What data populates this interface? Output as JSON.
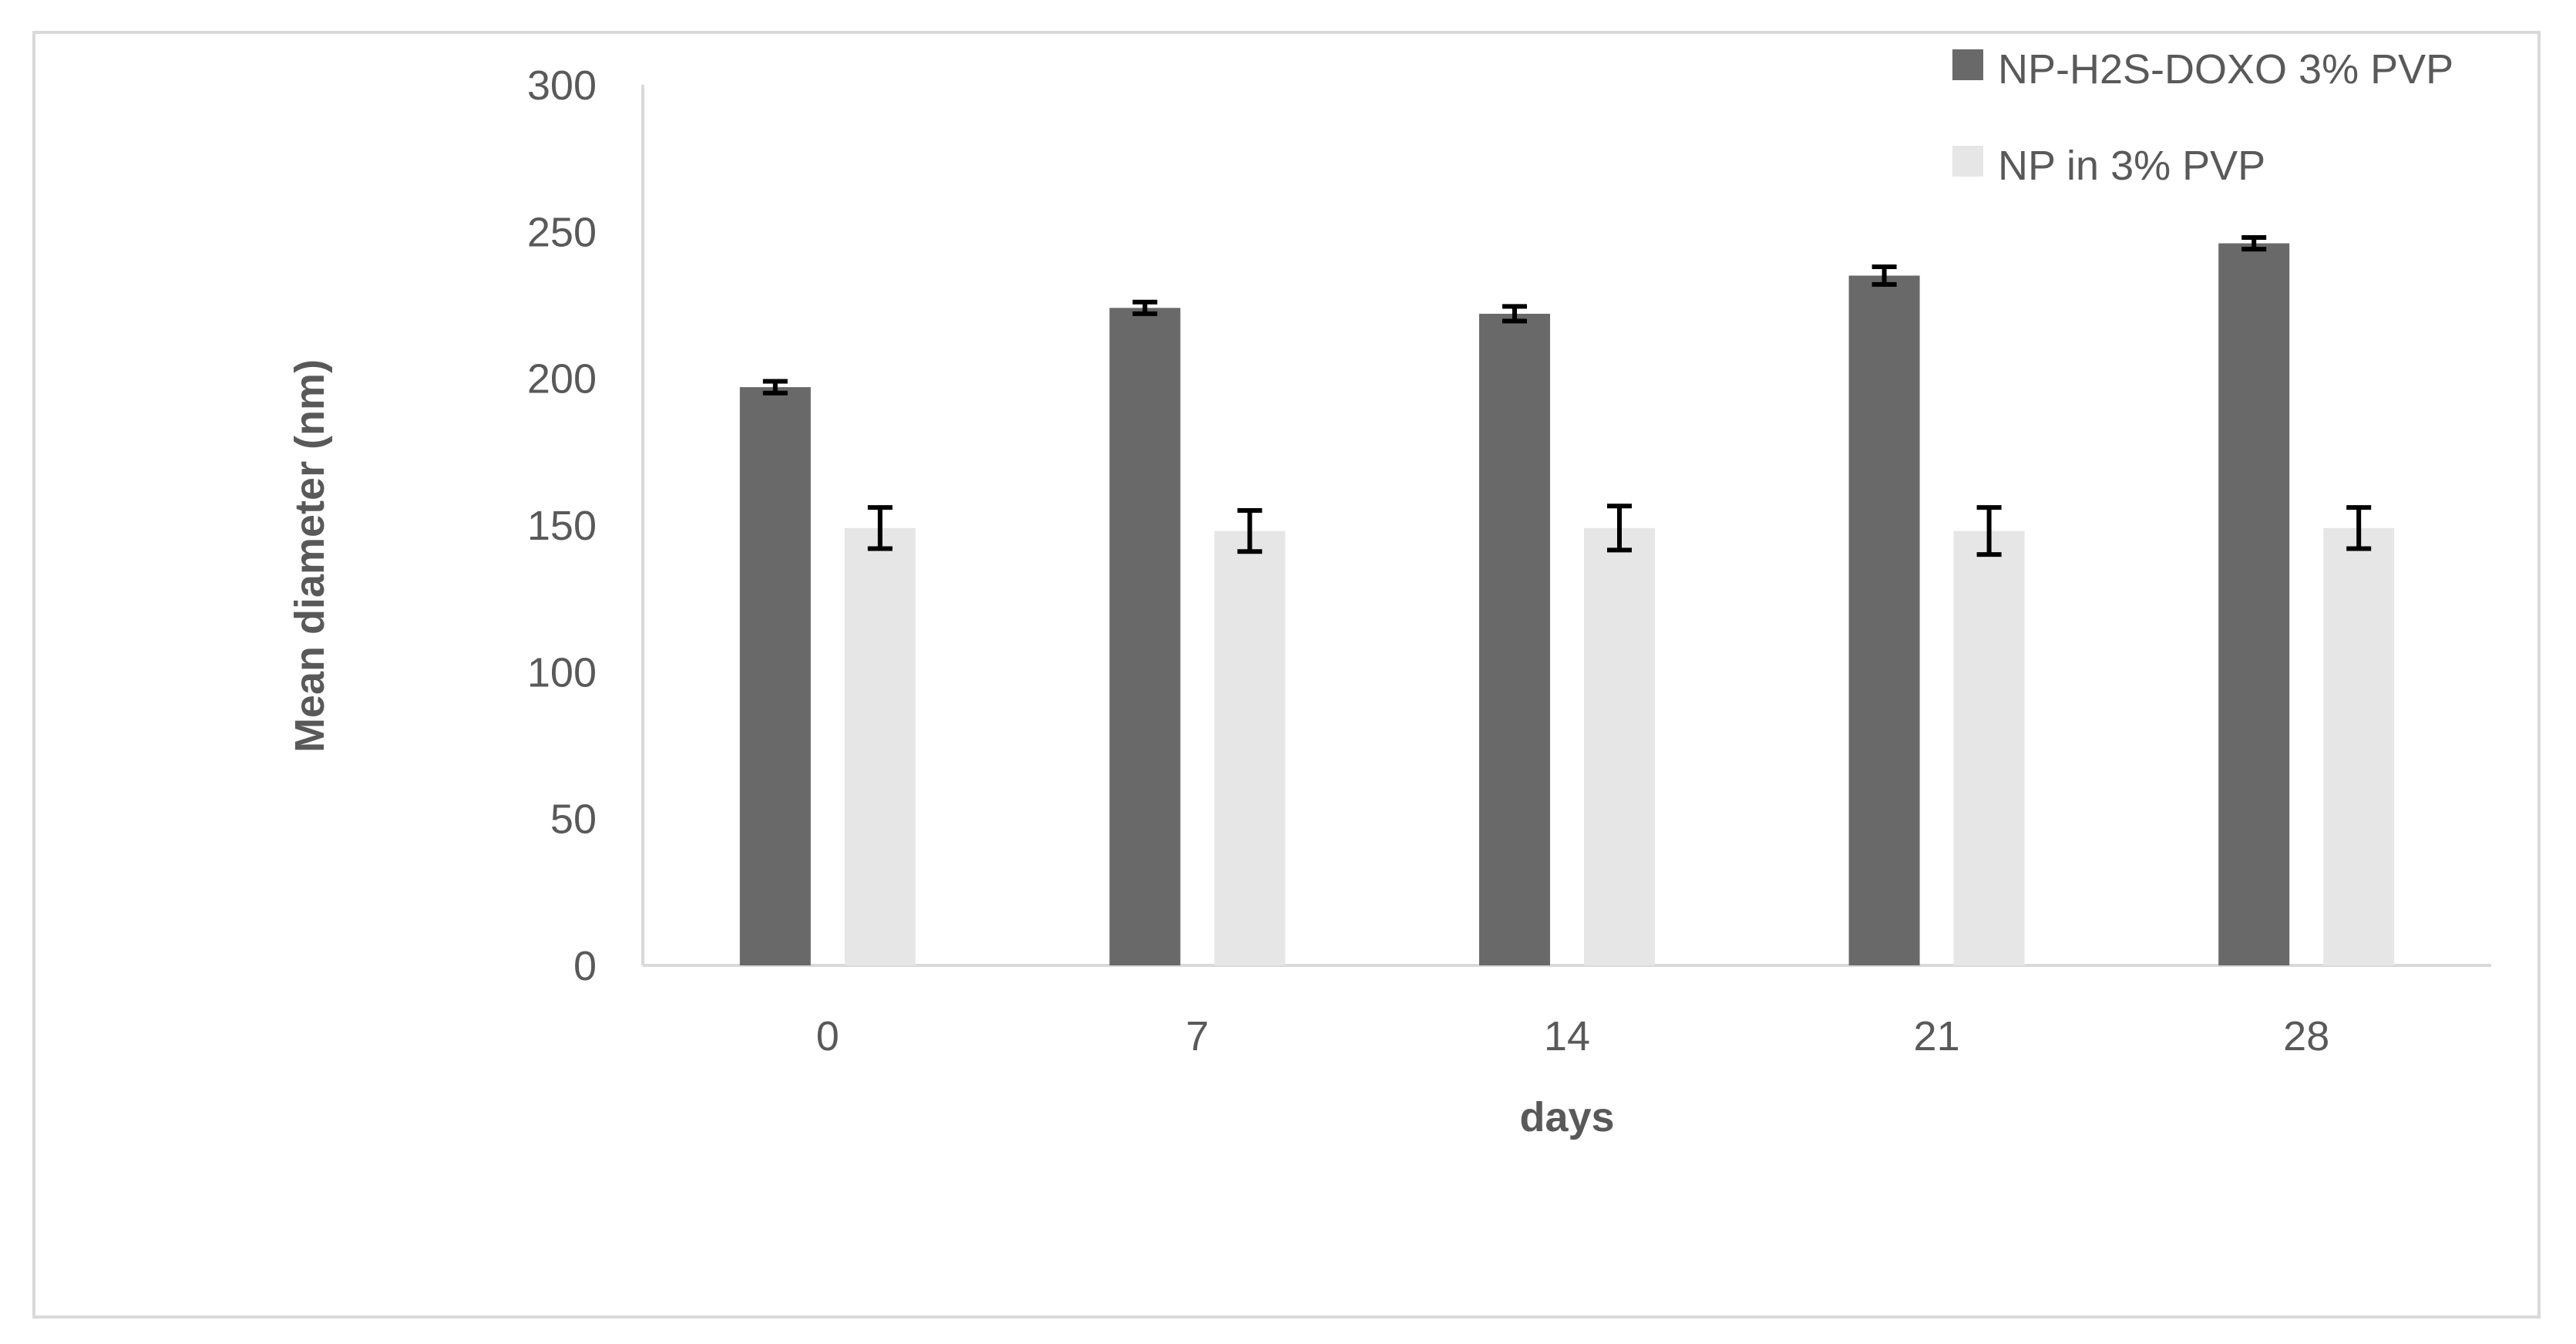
{
  "chart_data": {
    "type": "bar",
    "categories": [
      "0",
      "7",
      "14",
      "21",
      "28"
    ],
    "series": [
      {
        "name": "NP-H2S-DOXO 3% PVP",
        "values": [
          197,
          224,
          222,
          235,
          246
        ],
        "errors": [
          2,
          2,
          2.5,
          3,
          2
        ],
        "color": "#696969"
      },
      {
        "name": "NP in 3% PVP",
        "values": [
          149,
          148,
          149,
          148,
          149
        ],
        "errors": [
          7,
          7,
          7.5,
          8,
          7
        ],
        "color": "#e6e6e6"
      }
    ],
    "title": "",
    "xlabel": "days",
    "ylabel": "Mean diameter (nm)",
    "ylim": [
      0,
      300
    ],
    "yticks": [
      0,
      50,
      100,
      150,
      200,
      250,
      300
    ],
    "grid": false,
    "legend": "top-right"
  }
}
